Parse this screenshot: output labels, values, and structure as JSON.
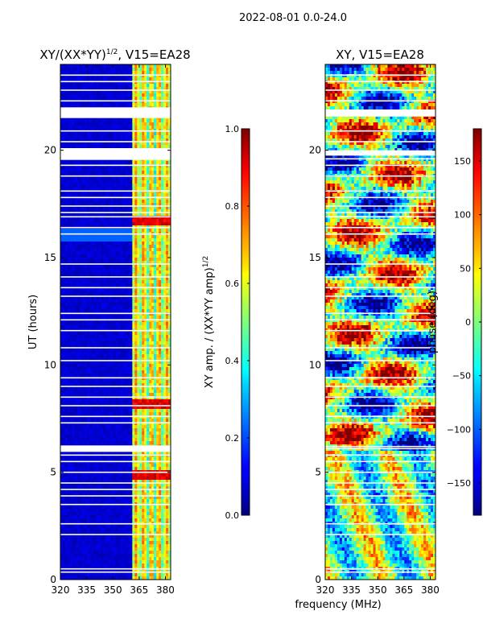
{
  "suptitle": "2022-08-01 0.0-24.0",
  "chart_data": [
    {
      "type": "heatmap",
      "title_main": "XY/(XX*YY)",
      "title_sup": "1/2",
      "title_tail": ", V15=EA28",
      "xlabel": "",
      "ylabel": "UT (hours)",
      "xlim": [
        320,
        383
      ],
      "ylim": [
        0,
        24
      ],
      "xticks": [
        320,
        335,
        350,
        365,
        380
      ],
      "yticks": [
        0,
        5,
        10,
        15,
        20
      ],
      "colorbar": {
        "label_main": "XY amp. / (XX*YY amp)",
        "label_sup": "1/2",
        "range": [
          0.0,
          1.0
        ],
        "ticks": [
          "0.0",
          "0.2",
          "0.4",
          "0.6",
          "0.8",
          "1.0"
        ],
        "tick_values": [
          0.0,
          0.2,
          0.4,
          0.6,
          0.8,
          1.0
        ]
      },
      "blank_rows_ut": [
        0.35,
        0.5,
        2.1,
        2.6,
        3.5,
        3.9,
        4.2,
        4.5,
        5.0,
        5.5,
        5.8,
        6.1,
        6.2,
        7.3,
        7.6,
        8.1,
        8.5,
        9.0,
        9.4,
        10.2,
        10.8,
        11.6,
        12.1,
        12.4,
        13.2,
        13.6,
        14.1,
        14.7,
        16.1,
        16.4,
        16.9,
        17.1,
        17.4,
        17.8,
        18.1,
        18.8,
        19.3,
        19.6,
        19.9,
        20.4,
        20.9,
        21.6,
        22.3,
        22.8,
        23.2,
        23.5
      ],
      "blank_bands_ut": [
        [
          5.95,
          6.25
        ],
        [
          19.55,
          20.1
        ],
        [
          21.5,
          22.0
        ]
      ]
    },
    {
      "type": "heatmap",
      "title": "XY, V15=EA28",
      "xlabel": "frequency (MHz)",
      "ylabel": "",
      "xlim": [
        320,
        383
      ],
      "ylim": [
        0,
        24
      ],
      "xticks": [
        320,
        335,
        350,
        365,
        380
      ],
      "yticks": [
        0,
        5,
        10,
        15,
        20
      ],
      "colorbar": {
        "label": "phase (deg)",
        "range": [
          -180,
          180
        ],
        "ticks": [
          "150",
          "100",
          "50",
          "0",
          "−50",
          "−100",
          "−150"
        ],
        "tick_values": [
          150,
          100,
          50,
          0,
          -50,
          -100,
          -150
        ]
      },
      "blank_rows_ut": [
        0.35,
        0.5,
        2.1,
        2.6,
        3.5,
        3.9,
        4.2,
        4.5,
        5.0,
        5.5,
        5.8,
        6.1,
        6.2,
        7.3,
        7.6,
        8.1,
        8.5,
        9.0,
        9.4,
        10.2,
        10.8,
        11.6,
        12.1,
        12.4,
        13.2,
        13.6,
        14.1,
        14.7,
        16.1,
        16.4,
        16.9,
        17.1,
        17.4,
        17.8,
        18.1,
        18.8,
        19.3,
        19.6,
        19.9,
        20.4,
        20.9,
        21.6,
        22.3,
        22.8,
        23.2,
        23.5
      ],
      "blank_bands_ut": [
        [
          19.75,
          20.0
        ],
        [
          21.6,
          21.9
        ]
      ]
    }
  ]
}
